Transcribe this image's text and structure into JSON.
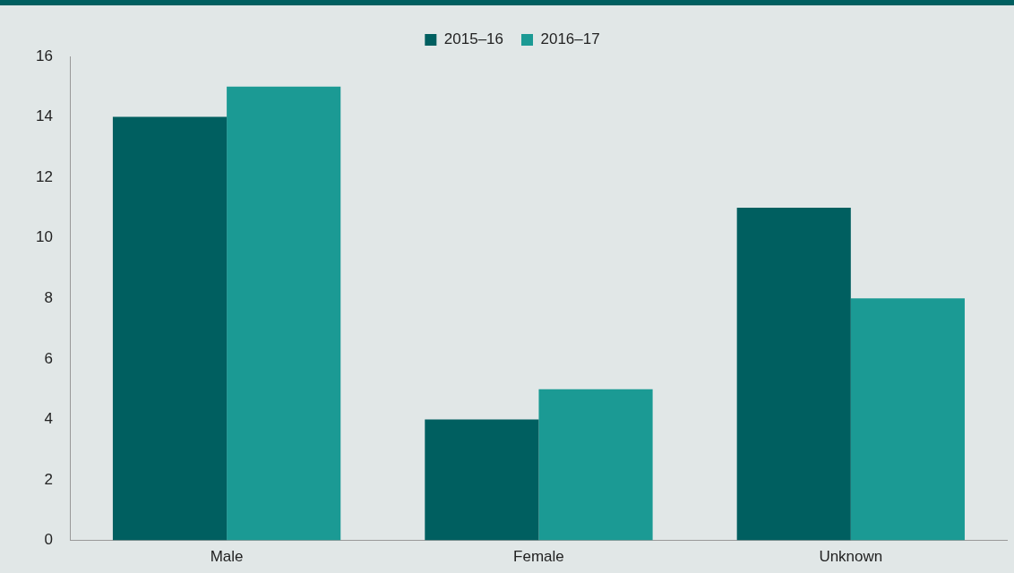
{
  "chart_data": {
    "type": "bar",
    "categories": [
      "Male",
      "Female",
      "Unknown"
    ],
    "series": [
      {
        "name": "2015–16",
        "color": "#005f60",
        "values": [
          14,
          4,
          11
        ]
      },
      {
        "name": "2016–17",
        "color": "#1b9a94",
        "values": [
          15,
          5,
          8
        ]
      }
    ],
    "ylim": [
      0,
      16
    ],
    "yticks": [
      0,
      2,
      4,
      6,
      8,
      10,
      12,
      14,
      16
    ],
    "grid": false,
    "legend": "top"
  }
}
